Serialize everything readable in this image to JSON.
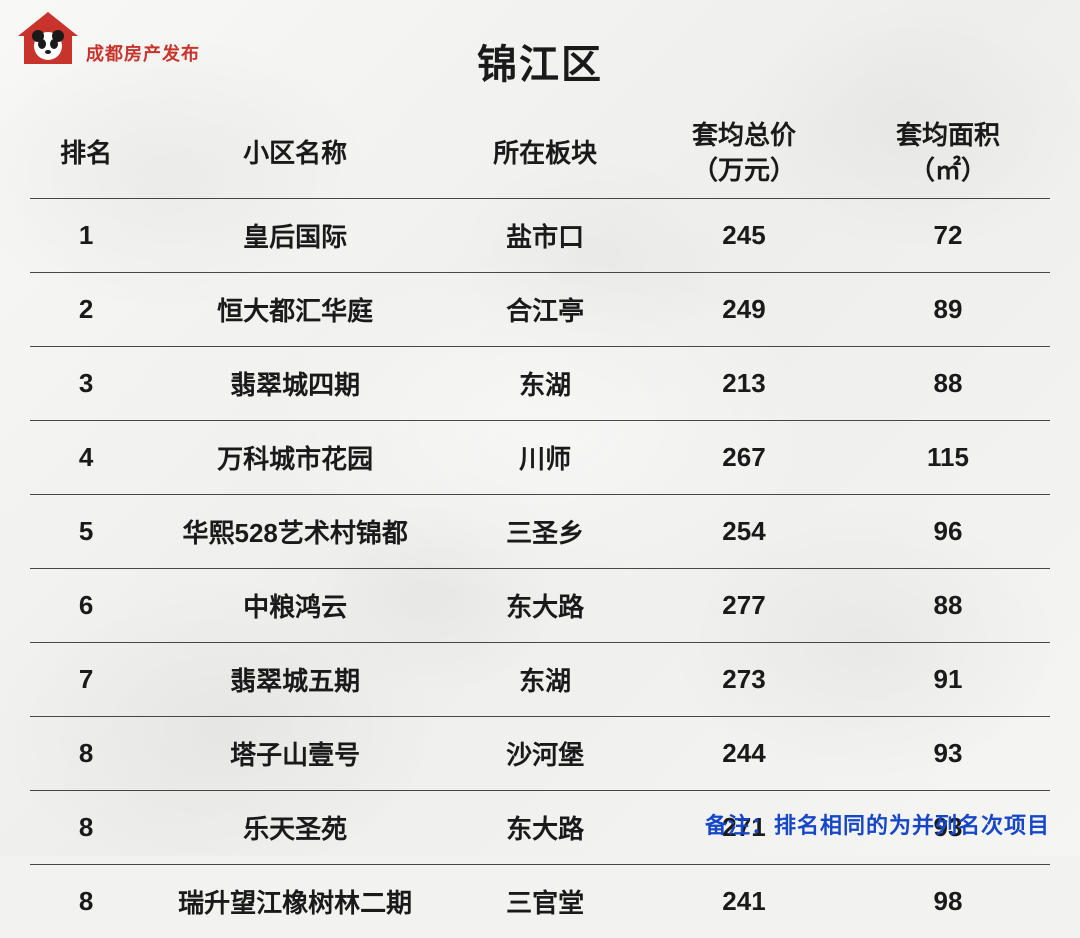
{
  "logo": {
    "text": "成都房产发布",
    "icon_color": "#c8342c"
  },
  "title": "锦江区",
  "table": {
    "columns": [
      {
        "key": "rank",
        "label": "排名"
      },
      {
        "key": "name",
        "label": "小区名称"
      },
      {
        "key": "area",
        "label": "所在板块"
      },
      {
        "key": "price",
        "label_line1": "套均总价",
        "label_line2": "（万元）"
      },
      {
        "key": "size",
        "label_line1": "套均面积",
        "label_line2": "（㎡）"
      }
    ],
    "rows": [
      {
        "rank": "1",
        "name": "皇后国际",
        "area": "盐市口",
        "price": "245",
        "size": "72"
      },
      {
        "rank": "2",
        "name": "恒大都汇华庭",
        "area": "合江亭",
        "price": "249",
        "size": "89"
      },
      {
        "rank": "3",
        "name": "翡翠城四期",
        "area": "东湖",
        "price": "213",
        "size": "88"
      },
      {
        "rank": "4",
        "name": "万科城市花园",
        "area": "川师",
        "price": "267",
        "size": "115"
      },
      {
        "rank": "5",
        "name": "华熙528艺术村锦都",
        "area": "三圣乡",
        "price": "254",
        "size": "96"
      },
      {
        "rank": "6",
        "name": "中粮鸿云",
        "area": "东大路",
        "price": "277",
        "size": "88"
      },
      {
        "rank": "7",
        "name": "翡翠城五期",
        "area": "东湖",
        "price": "273",
        "size": "91"
      },
      {
        "rank": "8",
        "name": "塔子山壹号",
        "area": "沙河堡",
        "price": "244",
        "size": "93"
      },
      {
        "rank": "8",
        "name": "乐天圣苑",
        "area": "东大路",
        "price": "271",
        "size": "93"
      },
      {
        "rank": "8",
        "name": "瑞升望江橡树林二期",
        "area": "三官堂",
        "price": "241",
        "size": "98"
      }
    ]
  },
  "footnote": "备注：排名相同的为并列名次项目",
  "styling": {
    "title_fontsize": 40,
    "header_fontsize": 26,
    "cell_fontsize": 26,
    "footnote_fontsize": 22,
    "text_color": "#1a1a1a",
    "footnote_color": "#1647c9",
    "logo_color": "#c8342c",
    "border_color": "rgba(0,0,0,0.7)",
    "background_base": "#f2f2f0",
    "col_widths_pct": [
      11,
      30,
      19,
      20,
      20
    ]
  }
}
